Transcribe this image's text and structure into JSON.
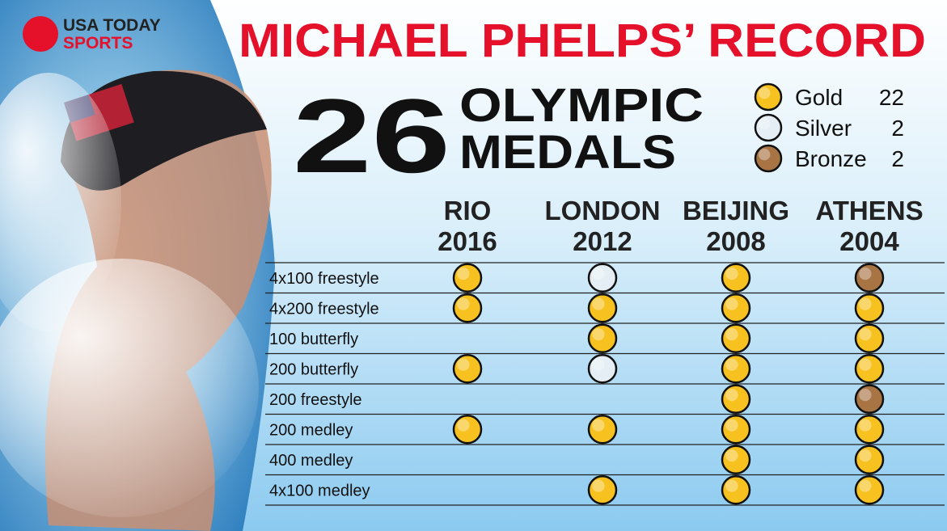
{
  "brand": {
    "name": "USA TODAY",
    "section": "SPORTS"
  },
  "title": "MICHAEL PHELPS’ RECORD",
  "headline": {
    "count": 26,
    "line1": "OLYMPIC",
    "line2": "MEDALS"
  },
  "legend": [
    {
      "name": "Gold",
      "count": 22,
      "color": "#f7c21f"
    },
    {
      "name": "Silver",
      "count": 2,
      "color": "#e4eef4"
    },
    {
      "name": "Bronze",
      "count": 2,
      "color": "#a87444"
    }
  ],
  "table": {
    "columns": [
      {
        "city": "RIO",
        "year": "2016"
      },
      {
        "city": "LONDON",
        "year": "2012"
      },
      {
        "city": "BEIJING",
        "year": "2008"
      },
      {
        "city": "ATHENS",
        "year": "2004"
      }
    ],
    "rows": [
      {
        "event": "4x100 freestyle",
        "medals": [
          "Gold",
          "Silver",
          "Gold",
          "Bronze"
        ]
      },
      {
        "event": "4x200 freestyle",
        "medals": [
          "Gold",
          "Gold",
          "Gold",
          "Gold"
        ]
      },
      {
        "event": "100 butterfly",
        "medals": [
          null,
          "Gold",
          "Gold",
          "Gold"
        ]
      },
      {
        "event": "200 butterfly",
        "medals": [
          "Gold",
          "Silver",
          "Gold",
          "Gold"
        ]
      },
      {
        "event": "200 freestyle",
        "medals": [
          null,
          null,
          "Gold",
          "Bronze"
        ]
      },
      {
        "event": "200 medley",
        "medals": [
          "Gold",
          "Gold",
          "Gold",
          "Gold"
        ]
      },
      {
        "event": "400 medley",
        "medals": [
          null,
          null,
          "Gold",
          "Gold"
        ]
      },
      {
        "event": "4x100 medley",
        "medals": [
          null,
          "Gold",
          "Gold",
          "Gold"
        ]
      }
    ]
  }
}
